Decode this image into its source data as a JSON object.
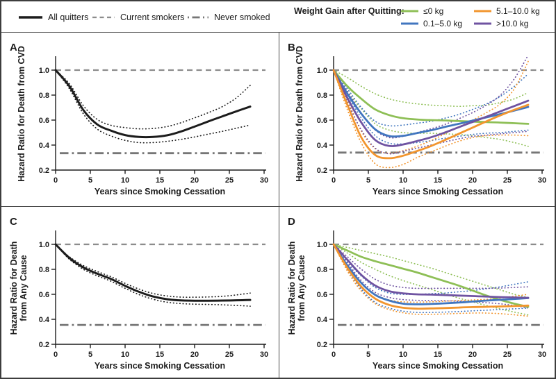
{
  "figure": {
    "legend_left": [
      {
        "label": "All quitters",
        "style": "solid",
        "color": "#1c1c1c"
      },
      {
        "label": "Current smokers",
        "style": "dashed",
        "color": "#8c8c8c"
      },
      {
        "label": "Never smoked",
        "style": "dashdot",
        "color": "#767676"
      }
    ],
    "legend_right": {
      "title": "Weight Gain after Quitting:",
      "items": [
        {
          "label": "≤0 kg",
          "style": "solid",
          "color": "#8ebf56"
        },
        {
          "label": "5.1–10.0 kg",
          "style": "solid",
          "color": "#f2952e"
        },
        {
          "label": "0.1–5.0 kg",
          "style": "solid",
          "color": "#4176bf"
        },
        {
          "label": ">10.0 kg",
          "style": "solid",
          "color": "#6f53a1"
        }
      ]
    }
  },
  "chart_data": {
    "type": "line",
    "xlabel": "Years since Smoking Cessation",
    "x_ticks": [
      0,
      5,
      10,
      15,
      20,
      25,
      30
    ],
    "y_ticks": [
      0.2,
      0.4,
      0.6,
      0.8,
      1.0
    ],
    "xlim": [
      0,
      30
    ],
    "ylim": [
      0.2,
      1.1
    ],
    "x": [
      0,
      2,
      4,
      6,
      8,
      10,
      12,
      14,
      16,
      18,
      20,
      22,
      24,
      26,
      28
    ],
    "ref_colors": {
      "current_smokers": "#8c8c8c",
      "never_smoked": "#767676"
    },
    "panels": [
      {
        "letter": "A",
        "ylabel_lines": [
          "Hazard Ratio for Death from CVD"
        ],
        "reference_lines": {
          "current_smokers": 1.0,
          "never_smoked": 0.335
        },
        "series": [
          {
            "name": "All quitters 95% CI upper",
            "color": "#1c1c1c",
            "style": "dotted",
            "values": [
              1.0,
              0.89,
              0.715,
              0.605,
              0.558,
              0.54,
              0.53,
              0.533,
              0.548,
              0.578,
              0.618,
              0.66,
              0.708,
              0.778,
              0.878
            ]
          },
          {
            "name": "All quitters 95% CI lower",
            "color": "#1c1c1c",
            "style": "dotted",
            "values": [
              1.0,
              0.85,
              0.65,
              0.528,
              0.472,
              0.438,
              0.42,
              0.42,
              0.43,
              0.445,
              0.465,
              0.488,
              0.51,
              0.535,
              0.56
            ]
          },
          {
            "name": "All quitters",
            "color": "#1c1c1c",
            "style": "solid",
            "w": 3,
            "values": [
              1.0,
              0.87,
              0.68,
              0.565,
              0.515,
              0.48,
              0.465,
              0.465,
              0.478,
              0.508,
              0.548,
              0.59,
              0.63,
              0.67,
              0.708
            ]
          }
        ]
      },
      {
        "letter": "B",
        "ylabel_lines": [
          "Hazard Ratio for Death from CVD"
        ],
        "reference_lines": {
          "current_smokers": 1.0,
          "never_smoked": 0.34
        },
        "series": [
          {
            "name": "≤0 kg 95% CI upper",
            "color": "#8ebf56",
            "style": "dotted",
            "values": [
              1.0,
              0.94,
              0.87,
              0.81,
              0.77,
              0.745,
              0.73,
              0.72,
              0.715,
              0.71,
              0.715,
              0.72,
              0.74,
              0.77,
              0.82
            ]
          },
          {
            "name": "≤0 kg 95% CI lower",
            "color": "#8ebf56",
            "style": "dotted",
            "values": [
              1.0,
              0.83,
              0.69,
              0.57,
              0.52,
              0.5,
              0.495,
              0.495,
              0.49,
              0.485,
              0.475,
              0.46,
              0.445,
              0.42,
              0.39
            ]
          },
          {
            "name": "0.1–5.0 kg 95% CI upper",
            "color": "#4176bf",
            "style": "dotted",
            "values": [
              1.0,
              0.85,
              0.7,
              0.59,
              0.555,
              0.56,
              0.575,
              0.59,
              0.615,
              0.645,
              0.685,
              0.73,
              0.79,
              0.87,
              0.97
            ]
          },
          {
            "name": "0.1–5.0 kg 95% CI lower",
            "color": "#4176bf",
            "style": "dotted",
            "values": [
              1.0,
              0.8,
              0.615,
              0.475,
              0.415,
              0.41,
              0.42,
              0.435,
              0.455,
              0.47,
              0.485,
              0.495,
              0.5,
              0.51,
              0.52
            ]
          },
          {
            "name": "5.1–10.0 kg 95% CI upper",
            "color": "#f2952e",
            "style": "dotted",
            "values": [
              1.0,
              0.76,
              0.51,
              0.37,
              0.335,
              0.355,
              0.39,
              0.435,
              0.49,
              0.545,
              0.6,
              0.66,
              0.73,
              0.85,
              1.07
            ]
          },
          {
            "name": "5.1–10.0 kg 95% CI lower",
            "color": "#f2952e",
            "style": "dotted",
            "values": [
              1.0,
              0.68,
              0.415,
              0.25,
              0.22,
              0.245,
              0.3,
              0.345,
              0.39,
              0.43,
              0.46,
              0.475,
              0.48,
              0.48,
              0.475
            ]
          },
          {
            "name": ">10.0 kg 95% CI upper",
            "color": "#6f53a1",
            "style": "dotted",
            "values": [
              1.0,
              0.83,
              0.655,
              0.52,
              0.46,
              0.47,
              0.5,
              0.53,
              0.565,
              0.61,
              0.66,
              0.72,
              0.8,
              0.93,
              1.12
            ]
          },
          {
            "name": ">10.0 kg 95% CI lower",
            "color": "#6f53a1",
            "style": "dotted",
            "values": [
              1.0,
              0.74,
              0.52,
              0.375,
              0.33,
              0.35,
              0.375,
              0.4,
              0.425,
              0.45,
              0.47,
              0.48,
              0.49,
              0.5,
              0.51
            ]
          },
          {
            "name": "≤0 kg",
            "color": "#8ebf56",
            "style": "solid",
            "w": 2.8,
            "values": [
              1.0,
              0.87,
              0.77,
              0.685,
              0.64,
              0.615,
              0.605,
              0.6,
              0.597,
              0.592,
              0.588,
              0.584,
              0.58,
              0.575,
              0.57
            ]
          },
          {
            "name": "0.1–5.0 kg",
            "color": "#4176bf",
            "style": "solid",
            "w": 2.8,
            "values": [
              1.0,
              0.81,
              0.65,
              0.525,
              0.472,
              0.474,
              0.496,
              0.518,
              0.545,
              0.57,
              0.596,
              0.622,
              0.648,
              0.676,
              0.705
            ]
          },
          {
            "name": ">10.0 kg",
            "color": "#6f53a1",
            "style": "solid",
            "w": 2.8,
            "values": [
              1.0,
              0.775,
              0.58,
              0.44,
              0.393,
              0.405,
              0.432,
              0.462,
              0.5,
              0.543,
              0.585,
              0.627,
              0.67,
              0.712,
              0.755
            ]
          },
          {
            "name": "5.1–10.0 kg",
            "color": "#f2952e",
            "style": "solid",
            "w": 2.8,
            "values": [
              1.0,
              0.72,
              0.46,
              0.32,
              0.295,
              0.315,
              0.352,
              0.392,
              0.44,
              0.49,
              0.54,
              0.59,
              0.638,
              0.682,
              0.722
            ]
          }
        ]
      },
      {
        "letter": "C",
        "ylabel_lines": [
          "Hazard Ratio for Death",
          "from Any Cause"
        ],
        "reference_lines": {
          "current_smokers": 1.0,
          "never_smoked": 0.355
        },
        "series": [
          {
            "name": "All quitters 95% CI upper",
            "color": "#1c1c1c",
            "style": "dotted",
            "values": [
              1.0,
              0.9,
              0.83,
              0.782,
              0.74,
              0.688,
              0.642,
              0.607,
              0.587,
              0.578,
              0.577,
              0.579,
              0.584,
              0.595,
              0.61
            ]
          },
          {
            "name": "All quitters 95% CI lower",
            "color": "#1c1c1c",
            "style": "dotted",
            "values": [
              1.0,
              0.88,
              0.8,
              0.748,
              0.704,
              0.648,
              0.598,
              0.561,
              0.537,
              0.526,
              0.521,
              0.519,
              0.516,
              0.511,
              0.505
            ]
          },
          {
            "name": "All quitters",
            "color": "#1c1c1c",
            "style": "solid",
            "w": 3,
            "values": [
              1.0,
              0.89,
              0.815,
              0.765,
              0.722,
              0.668,
              0.62,
              0.583,
              0.561,
              0.551,
              0.549,
              0.549,
              0.55,
              0.552,
              0.555
            ]
          }
        ]
      },
      {
        "letter": "D",
        "ylabel_lines": [
          "Hazard Ratio for Death",
          "from Any Cause"
        ],
        "reference_lines": {
          "current_smokers": 1.0,
          "never_smoked": 0.355
        },
        "series": [
          {
            "name": "≤0 kg 95% CI upper",
            "color": "#8ebf56",
            "style": "dotted",
            "values": [
              1.0,
              0.975,
              0.95,
              0.925,
              0.9,
              0.87,
              0.84,
              0.81,
              0.775,
              0.74,
              0.705,
              0.67,
              0.635,
              0.6,
              0.575
            ]
          },
          {
            "name": "≤0 kg 95% CI lower",
            "color": "#8ebf56",
            "style": "dotted",
            "values": [
              1.0,
              0.93,
              0.855,
              0.8,
              0.75,
              0.71,
              0.675,
              0.64,
              0.605,
              0.57,
              0.54,
              0.51,
              0.483,
              0.458,
              0.435
            ]
          },
          {
            "name": "0.1–5.0 kg 95% CI upper",
            "color": "#4176bf",
            "style": "dotted",
            "values": [
              1.0,
              0.86,
              0.745,
              0.655,
              0.61,
              0.6,
              0.6,
              0.605,
              0.61,
              0.62,
              0.63,
              0.645,
              0.66,
              0.68,
              0.7
            ]
          },
          {
            "name": "0.1–5.0 kg 95% CI lower",
            "color": "#4176bf",
            "style": "dotted",
            "values": [
              1.0,
              0.8,
              0.64,
              0.535,
              0.49,
              0.465,
              0.455,
              0.455,
              0.458,
              0.462,
              0.468,
              0.473,
              0.479,
              0.484,
              0.49
            ]
          },
          {
            "name": "5.1–10.0 kg 95% CI upper",
            "color": "#f2952e",
            "style": "dotted",
            "values": [
              1.0,
              0.835,
              0.685,
              0.6,
              0.555,
              0.54,
              0.537,
              0.54,
              0.545,
              0.55,
              0.555,
              0.56,
              0.57,
              0.585,
              0.6
            ]
          },
          {
            "name": "5.1–10.0 kg 95% CI lower",
            "color": "#f2952e",
            "style": "dotted",
            "values": [
              1.0,
              0.785,
              0.625,
              0.525,
              0.478,
              0.452,
              0.44,
              0.44,
              0.443,
              0.447,
              0.45,
              0.45,
              0.445,
              0.436,
              0.425
            ]
          },
          {
            "name": ">10.0 kg 95% CI upper",
            "color": "#6f53a1",
            "style": "dotted",
            "values": [
              1.0,
              0.9,
              0.8,
              0.72,
              0.675,
              0.655,
              0.648,
              0.648,
              0.648,
              0.648,
              0.648,
              0.648,
              0.65,
              0.655,
              0.66
            ]
          },
          {
            "name": ">10.0 kg 95% CI lower",
            "color": "#6f53a1",
            "style": "dotted",
            "values": [
              1.0,
              0.85,
              0.71,
              0.615,
              0.575,
              0.558,
              0.552,
              0.55,
              0.548,
              0.545,
              0.54,
              0.533,
              0.524,
              0.51,
              0.49
            ]
          },
          {
            "name": "≤0 kg",
            "color": "#8ebf56",
            "style": "solid",
            "w": 2.8,
            "values": [
              1.0,
              0.95,
              0.9,
              0.865,
              0.835,
              0.805,
              0.775,
              0.74,
              0.705,
              0.67,
              0.63,
              0.59,
              0.555,
              0.525,
              0.5
            ]
          },
          {
            "name": "0.1–5.0 kg",
            "color": "#4176bf",
            "style": "solid",
            "w": 2.8,
            "values": [
              1.0,
              0.83,
              0.69,
              0.595,
              0.55,
              0.525,
              0.52,
              0.523,
              0.528,
              0.534,
              0.542,
              0.55,
              0.556,
              0.563,
              0.57
            ]
          },
          {
            "name": ">10.0 kg",
            "color": "#6f53a1",
            "style": "solid",
            "w": 2.8,
            "values": [
              1.0,
              0.875,
              0.755,
              0.67,
              0.625,
              0.608,
              0.6,
              0.598,
              0.594,
              0.59,
              0.586,
              0.582,
              0.578,
              0.575,
              0.572
            ]
          },
          {
            "name": "5.1–10.0 kg",
            "color": "#f2952e",
            "style": "solid",
            "w": 2.8,
            "values": [
              1.0,
              0.81,
              0.66,
              0.565,
              0.515,
              0.492,
              0.485,
              0.487,
              0.49,
              0.494,
              0.498,
              0.5,
              0.503,
              0.506,
              0.51
            ]
          }
        ]
      }
    ]
  }
}
